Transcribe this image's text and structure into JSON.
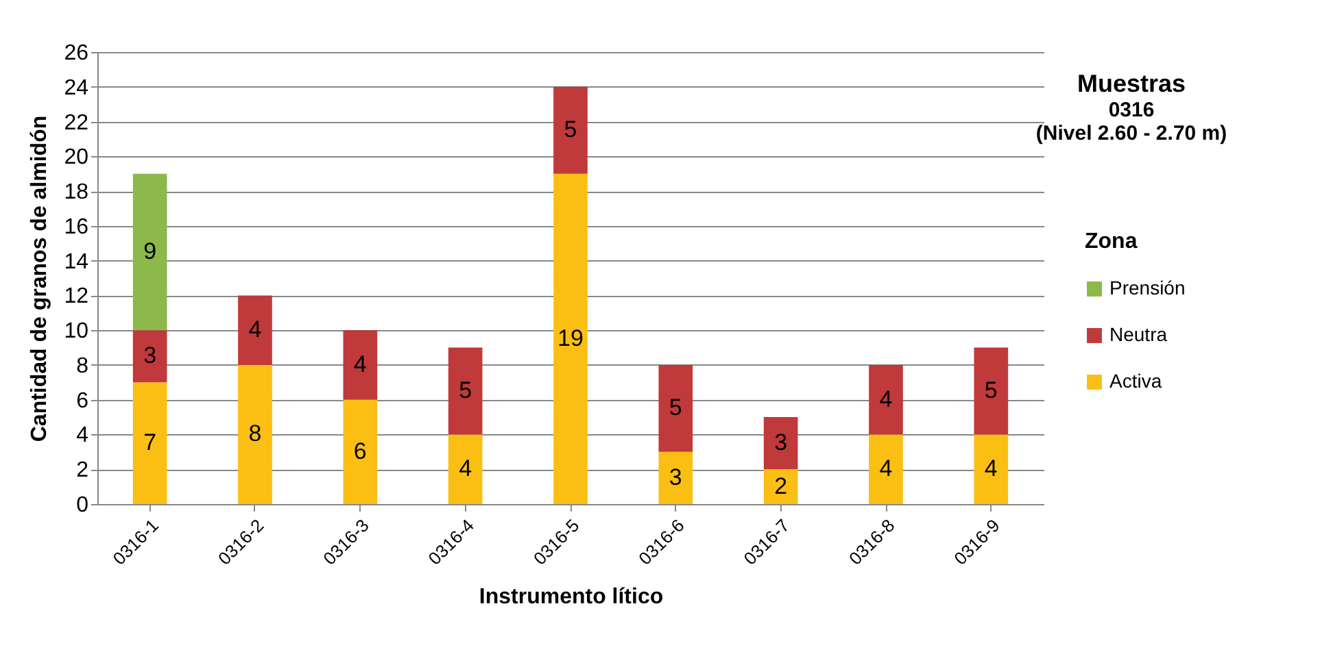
{
  "chart_data": {
    "type": "bar",
    "title": "Muestras",
    "subtitle": [
      "0316",
      "(Nivel 2.60 - 2.70 m)"
    ],
    "xlabel": "Instrumento lítico",
    "ylabel": "Cantidad de granos de almidón",
    "legend_title": "Zona",
    "categories": [
      "0316-1",
      "0316-2",
      "0316-3",
      "0316-4",
      "0316-5",
      "0316-6",
      "0316-7",
      "0316-8",
      "0316-9"
    ],
    "series": [
      {
        "name": "Activa",
        "color": "#fbbf14",
        "values": [
          7,
          8,
          6,
          4,
          19,
          3,
          2,
          4,
          4
        ]
      },
      {
        "name": "Neutra",
        "color": "#c0393b",
        "values": [
          3,
          4,
          4,
          5,
          5,
          5,
          3,
          4,
          5
        ]
      },
      {
        "name": "Prensión",
        "color": "#8db84a",
        "values": [
          9,
          null,
          null,
          null,
          null,
          null,
          null,
          null,
          null
        ]
      }
    ],
    "stacked": true,
    "data_labels": true,
    "ylim": [
      0,
      26
    ],
    "yticks": [
      0,
      2,
      4,
      6,
      8,
      10,
      12,
      14,
      16,
      18,
      20,
      22,
      24,
      26
    ],
    "grid": "y",
    "legend": "right"
  }
}
